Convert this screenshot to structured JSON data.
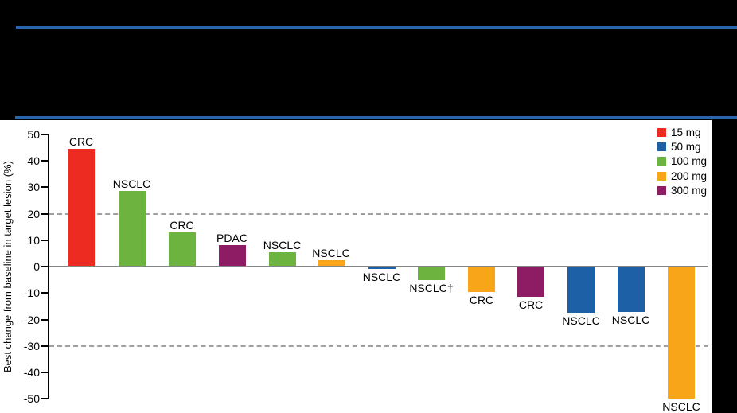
{
  "page_bg": "#000000",
  "header": {
    "rule_color": "#2a64ad"
  },
  "chart_data": {
    "type": "bar",
    "title": "",
    "ylabel": "Best change from baseline in target lesion (%)",
    "xlabel": "",
    "ylim": [
      -50,
      50
    ],
    "yticks": [
      50,
      40,
      30,
      20,
      10,
      0,
      -10,
      -20,
      -30,
      -40,
      -50
    ],
    "reference_lines": [
      20,
      -30
    ],
    "grid": "off",
    "legend_position": "top-right",
    "legend": [
      {
        "label": "15 mg",
        "color": "#ed2b21"
      },
      {
        "label": "50 mg",
        "color": "#1d60a5"
      },
      {
        "label": "100 mg",
        "color": "#6cb33f"
      },
      {
        "label": "200 mg",
        "color": "#f9a51a"
      },
      {
        "label": "300 mg",
        "color": "#8d1c64"
      }
    ],
    "bars": [
      {
        "label": "CRC",
        "dose": "15 mg",
        "value": 44.5
      },
      {
        "label": "NSCLC",
        "dose": "100 mg",
        "value": 28.5
      },
      {
        "label": "CRC",
        "dose": "100 mg",
        "value": 13
      },
      {
        "label": "PDAC",
        "dose": "300 mg",
        "value": 8
      },
      {
        "label": "NSCLC",
        "dose": "100 mg",
        "value": 5.5
      },
      {
        "label": "NSCLC",
        "dose": "200 mg",
        "value": 2.5
      },
      {
        "label": "NSCLC",
        "dose": "50 mg",
        "value": -1
      },
      {
        "label": "NSCLC†",
        "dose": "100 mg",
        "value": -5
      },
      {
        "label": "CRC",
        "dose": "200 mg",
        "value": -9.5
      },
      {
        "label": "CRC",
        "dose": "300 mg",
        "value": -11.5
      },
      {
        "label": "NSCLC",
        "dose": "50 mg",
        "value": -17.5
      },
      {
        "label": "NSCLC",
        "dose": "50 mg",
        "value": -17
      },
      {
        "label": "NSCLC",
        "dose": "200 mg",
        "value": -50
      }
    ],
    "colors": {
      "axis": "#000000",
      "zero_line": "#858585",
      "reference_line": "#a0a0a0",
      "panel_bg": "#ffffff",
      "text": "#000000"
    }
  }
}
